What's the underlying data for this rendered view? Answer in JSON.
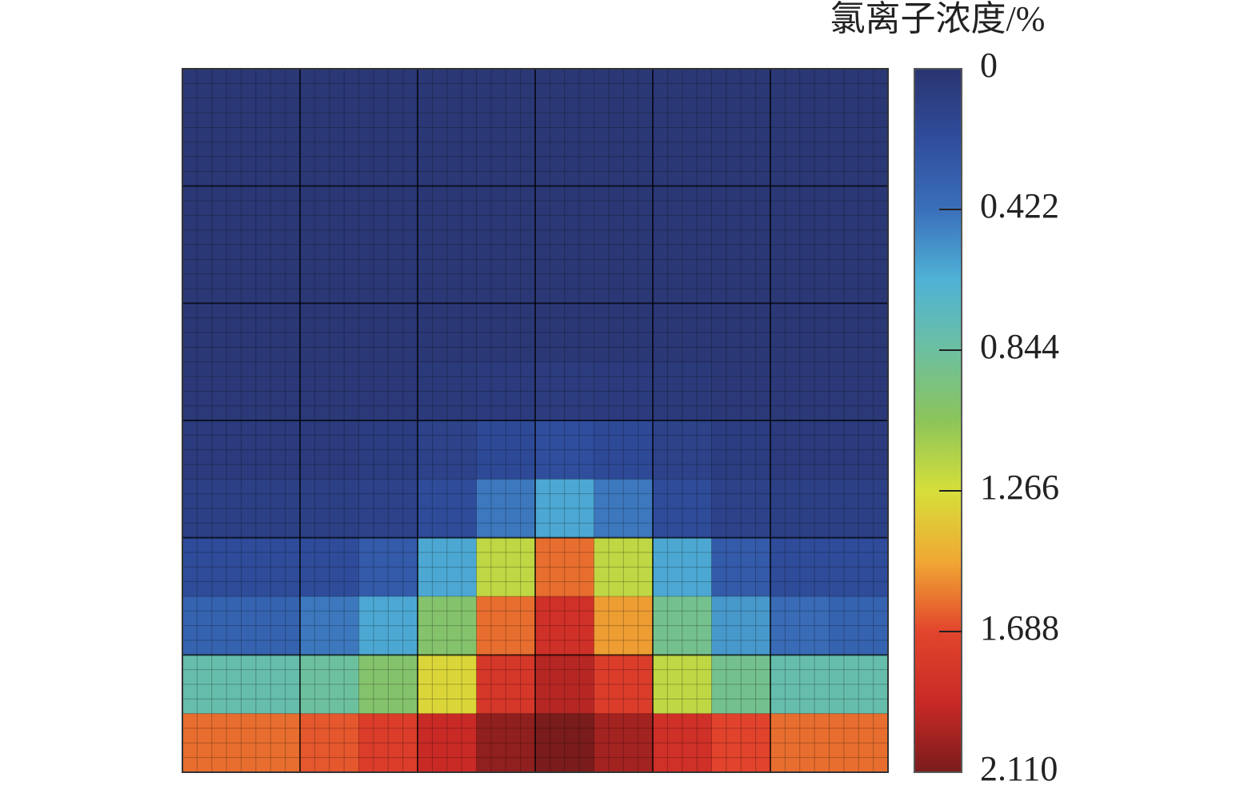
{
  "chart_data": {
    "type": "heatmap",
    "colorbar_title": "氯离子浓度/%",
    "colorscale": [
      "#2a3470",
      "#2f4d9c",
      "#3a6fba",
      "#4fb2d6",
      "#6cc0a0",
      "#8cc45a",
      "#d6df3a",
      "#f0a834",
      "#e2452c",
      "#c92a26",
      "#7a1c1c"
    ],
    "zlim": [
      0,
      2.11
    ],
    "zticks": [
      0,
      0.422,
      0.844,
      1.266,
      1.688,
      {
        "value": 2.11,
        "label": "2.110"
      }
    ],
    "z": [
      [
        0.03,
        0.03,
        0.03,
        0.03,
        0.03,
        0.03,
        0.03,
        0.03,
        0.03,
        0.03,
        0.03,
        0.03
      ],
      [
        0.03,
        0.03,
        0.03,
        0.03,
        0.03,
        0.03,
        0.03,
        0.03,
        0.03,
        0.03,
        0.03,
        0.03
      ],
      [
        0.03,
        0.03,
        0.03,
        0.03,
        0.03,
        0.03,
        0.03,
        0.03,
        0.03,
        0.03,
        0.03,
        0.03
      ],
      [
        0.03,
        0.03,
        0.03,
        0.03,
        0.03,
        0.03,
        0.03,
        0.03,
        0.03,
        0.03,
        0.03,
        0.03
      ],
      [
        0.03,
        0.03,
        0.03,
        0.03,
        0.03,
        0.03,
        0.03,
        0.03,
        0.03,
        0.03,
        0.03,
        0.03
      ],
      [
        0.04,
        0.04,
        0.04,
        0.04,
        0.05,
        0.06,
        0.07,
        0.06,
        0.05,
        0.04,
        0.04,
        0.04
      ],
      [
        0.06,
        0.06,
        0.06,
        0.08,
        0.12,
        0.18,
        0.22,
        0.18,
        0.12,
        0.08,
        0.06,
        0.06
      ],
      [
        0.1,
        0.1,
        0.1,
        0.12,
        0.2,
        0.45,
        0.6,
        0.45,
        0.2,
        0.12,
        0.1,
        0.1
      ],
      [
        0.2,
        0.2,
        0.2,
        0.3,
        0.6,
        1.2,
        1.6,
        1.2,
        0.6,
        0.3,
        0.2,
        0.2
      ],
      [
        0.35,
        0.35,
        0.45,
        0.6,
        1.0,
        1.6,
        1.85,
        1.5,
        0.9,
        0.55,
        0.4,
        0.35
      ],
      [
        0.8,
        0.8,
        0.85,
        1.0,
        1.3,
        1.8,
        1.95,
        1.75,
        1.2,
        0.9,
        0.8,
        0.8
      ],
      [
        1.6,
        1.6,
        1.65,
        1.75,
        1.9,
        2.05,
        2.11,
        2.0,
        1.85,
        1.7,
        1.6,
        1.6
      ]
    ]
  }
}
